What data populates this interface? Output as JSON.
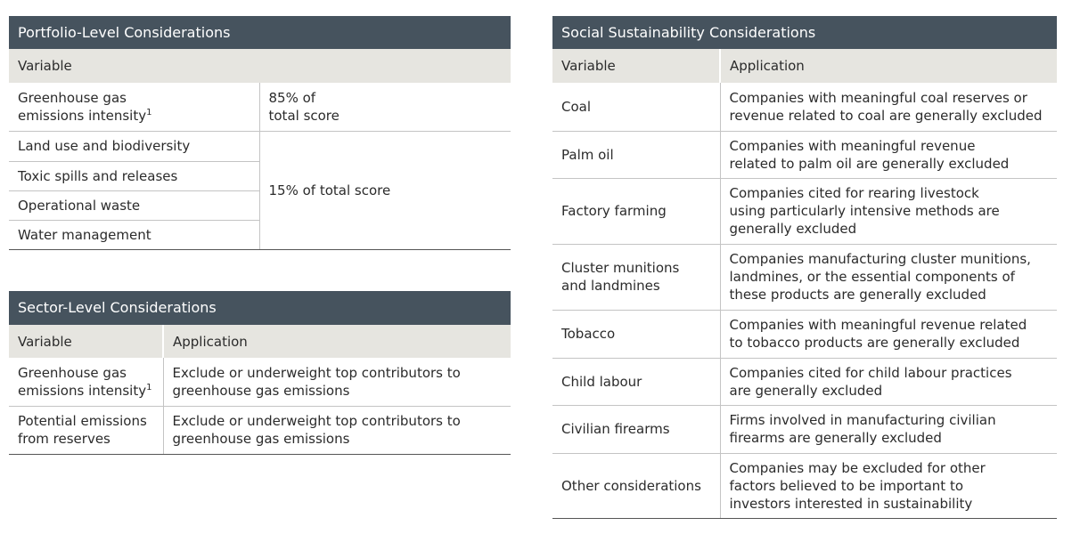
{
  "portfolio": {
    "title": "Portfolio-Level Considerations",
    "header": "Variable",
    "rows": [
      {
        "variable": [
          "Greenhouse gas",
          "emissions intensity"
        ],
        "footnote": "1",
        "weight": [
          "85% of",
          "total score"
        ]
      },
      {
        "variable": [
          "Land use and biodiversity"
        ]
      },
      {
        "variable": [
          "Toxic spills and releases"
        ]
      },
      {
        "variable": [
          "Operational waste"
        ]
      },
      {
        "variable": [
          "Water management"
        ]
      }
    ],
    "grouped_weight": "15% of total score"
  },
  "sector": {
    "title": "Sector-Level Considerations",
    "headers": [
      "Variable",
      "Application"
    ],
    "rows": [
      {
        "variable": [
          "Greenhouse gas",
          "emissions intensity"
        ],
        "footnote": "1",
        "application": [
          "Exclude or underweight top contributors to",
          "greenhouse gas emissions"
        ]
      },
      {
        "variable": [
          "Potential emissions",
          "from reserves"
        ],
        "application": [
          "Exclude or underweight top contributors to",
          "greenhouse gas emissions"
        ]
      }
    ]
  },
  "social": {
    "title": "Social Sustainability Considerations",
    "headers": [
      "Variable",
      "Application"
    ],
    "rows": [
      {
        "variable": [
          "Coal"
        ],
        "application": [
          "Companies with meaningful coal reserves or",
          "revenue related to coal are generally excluded"
        ]
      },
      {
        "variable": [
          "Palm oil"
        ],
        "application": [
          "Companies with meaningful revenue",
          "related to palm oil are generally excluded"
        ]
      },
      {
        "variable": [
          "Factory farming"
        ],
        "application": [
          "Companies cited for rearing livestock",
          "using particularly intensive methods are",
          "generally excluded"
        ]
      },
      {
        "variable": [
          "Cluster munitions",
          "and landmines"
        ],
        "application": [
          "Companies manufacturing cluster munitions,",
          "landmines, or the essential components of",
          "these products are generally excluded"
        ]
      },
      {
        "variable": [
          "Tobacco"
        ],
        "application": [
          "Companies with meaningful revenue related",
          "to tobacco products are generally excluded"
        ]
      },
      {
        "variable": [
          "Child labour"
        ],
        "application": [
          "Companies cited for child labour practices",
          "are generally excluded"
        ]
      },
      {
        "variable": [
          "Civilian firearms"
        ],
        "application": [
          "Firms involved in manufacturing civilian",
          "firearms are generally excluded"
        ]
      },
      {
        "variable": [
          "Other considerations"
        ],
        "application": [
          "Companies may be excluded for other",
          "factors believed to be important to",
          "investors interested in sustainability"
        ]
      }
    ]
  }
}
